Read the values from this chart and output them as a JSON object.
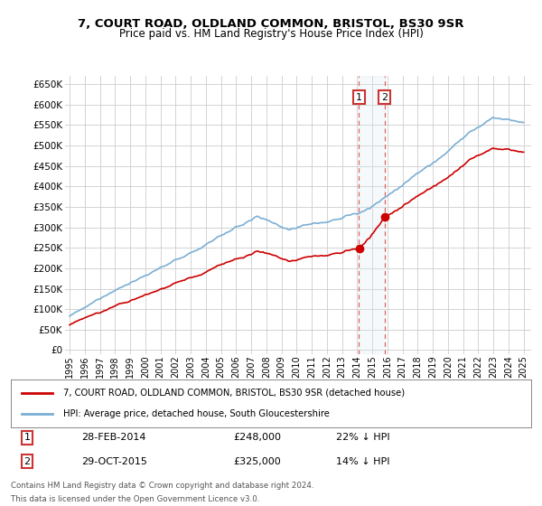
{
  "title": "7, COURT ROAD, OLDLAND COMMON, BRISTOL, BS30 9SR",
  "subtitle": "Price paid vs. HM Land Registry's House Price Index (HPI)",
  "line1_color": "#cc0000",
  "line2_color": "#7bafd4",
  "marker_color": "#cc0000",
  "shade_color": "#dce8f5",
  "dashed_color": "#e06060",
  "point1_date": "28-FEB-2014",
  "point1_price": 248000,
  "point1_hpi": "22% ↓ HPI",
  "point1_year": 2014.12,
  "point2_date": "29-OCT-2015",
  "point2_price": 325000,
  "point2_hpi": "14% ↓ HPI",
  "point2_year": 2015.83,
  "legend_line1": "7, COURT ROAD, OLDLAND COMMON, BRISTOL, BS30 9SR (detached house)",
  "legend_line2": "HPI: Average price, detached house, South Gloucestershire",
  "footnote1": "Contains HM Land Registry data © Crown copyright and database right 2024.",
  "footnote2": "This data is licensed under the Open Government Licence v3.0.",
  "background_color": "#ffffff",
  "grid_color": "#cccccc",
  "yticks": [
    0,
    50000,
    100000,
    150000,
    200000,
    250000,
    300000,
    350000,
    400000,
    450000,
    500000,
    550000,
    600000,
    650000
  ],
  "ylim_min": -10000,
  "ylim_max": 670000,
  "xmin": 1994.7,
  "xmax": 2025.5
}
